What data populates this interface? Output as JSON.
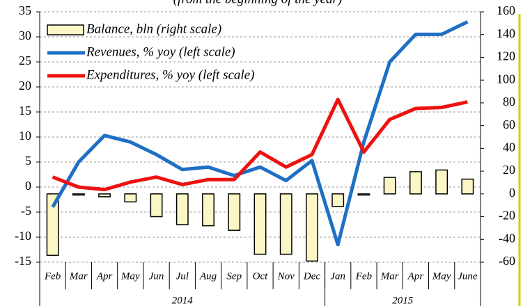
{
  "chart_data": {
    "type": "bar-line",
    "subtitle": "(from the beginning of the year)",
    "groups": [
      {
        "label": "2014",
        "categories": [
          "Feb",
          "Mar",
          "Apr",
          "May",
          "Jun",
          "Jul",
          "Aug",
          "Sep",
          "Oct",
          "Nov",
          "Dec"
        ]
      },
      {
        "label": "2015",
        "categories": [
          "Jan",
          "Feb",
          "Mar",
          "Apr",
          "May",
          "June"
        ]
      }
    ],
    "series": [
      {
        "name": "Balance, bln (right scale)",
        "type": "bar",
        "axis": "y2",
        "color": "#fbf6c6",
        "values": [
          -54,
          -1,
          -2.5,
          -7,
          -20,
          -27,
          -28,
          -32,
          -53,
          -53,
          -59,
          -11,
          -1,
          14.5,
          19.5,
          21,
          13
        ]
      },
      {
        "name": "Revenues, % yoy (left scale)",
        "type": "line",
        "color": "#1f6fc5",
        "values": [
          -4,
          5,
          10.3,
          9,
          6.5,
          3.5,
          4,
          2.3,
          4,
          1.3,
          5.3,
          -11.5,
          9,
          25,
          30.5,
          30.5,
          33
        ]
      },
      {
        "name": "Expenditures, % yoy (left scale)",
        "type": "line",
        "color": "#ee1111",
        "values": [
          2,
          0,
          -0.5,
          1,
          2,
          0.5,
          1.5,
          1.5,
          7,
          4,
          6.5,
          17.5,
          7,
          13.5,
          15.7,
          15.9,
          17
        ]
      }
    ],
    "ylim": [
      -15,
      35
    ],
    "yticks": [
      -15,
      -10,
      -5,
      0,
      5,
      10,
      15,
      20,
      25,
      30,
      35
    ],
    "y2lim": [
      -60,
      160
    ],
    "y2ticks": [
      -60,
      -40,
      -20,
      0,
      20,
      40,
      60,
      80,
      100,
      120,
      140,
      160
    ],
    "grid": true,
    "legend": "upper left"
  }
}
